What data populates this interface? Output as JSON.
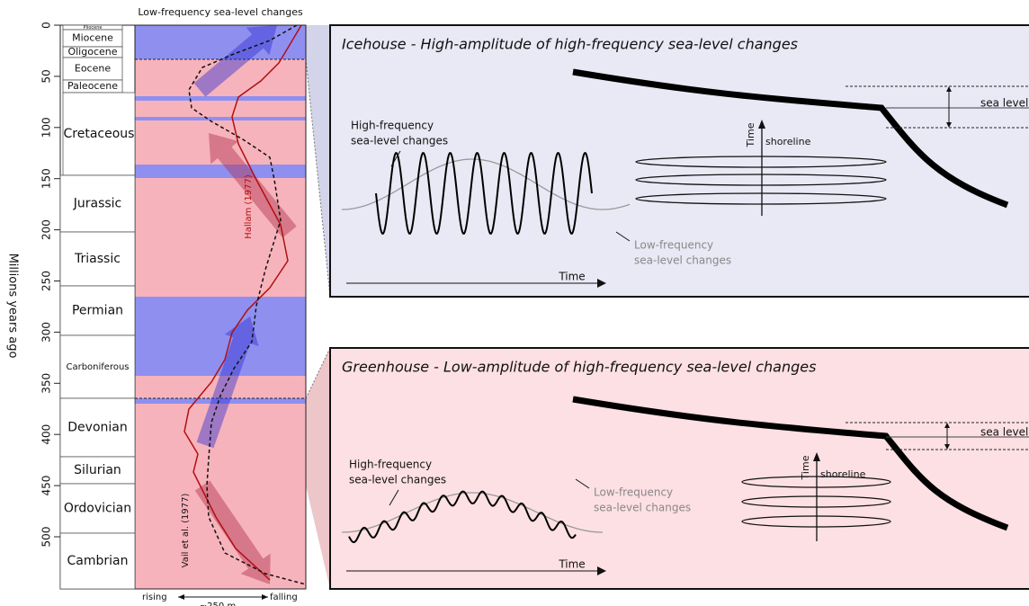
{
  "left": {
    "title": "Low-frequency sea-level changes",
    "axis_label": "Millions years ago",
    "ticks": [
      0,
      50,
      100,
      150,
      200,
      250,
      300,
      350,
      400,
      450,
      500
    ],
    "periods": [
      "Pliocene",
      "Miocene",
      "Oligocene",
      "Eocene",
      "Paleocene",
      "Cretaceous",
      "Jurassic",
      "Triassic",
      "Permian",
      "Carboniferous",
      "Devonian",
      "Silurian",
      "Ordovician",
      "Cambrian"
    ],
    "curve_labels": [
      "Hallam (1977)",
      "Vail et al. (1977)"
    ],
    "scale": {
      "rising": "rising",
      "amplitude": "~250 m",
      "falling": "falling"
    }
  },
  "panels": [
    {
      "title": "Icehouse - High-amplitude of high-frequency sea-level changes",
      "high_label": [
        "High-frequency",
        "sea-level changes"
      ],
      "low_label": [
        "Low-frequency",
        "sea-level changes"
      ],
      "time_x": "Time",
      "time_y": "Time",
      "shoreline": "shoreline",
      "sea_level": "sea level"
    },
    {
      "title": "Greenhouse - Low-amplitude of high-frequency sea-level changes",
      "high_label": [
        "High-frequency",
        "sea-level changes"
      ],
      "low_label": [
        "Low-frequency",
        "sea-level changes"
      ],
      "time_x": "Time",
      "time_y": "Time",
      "shoreline": "shoreline",
      "sea_level": "sea level"
    }
  ]
}
